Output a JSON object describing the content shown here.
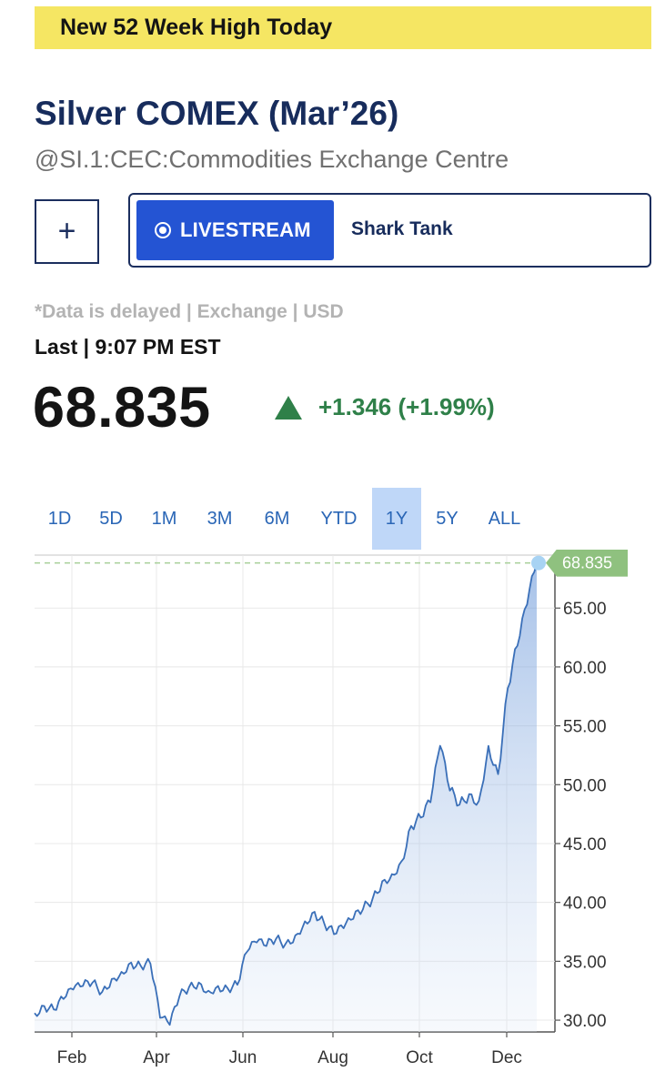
{
  "banner": {
    "text": "New 52 Week High Today"
  },
  "header": {
    "title": "Silver COMEX (Mar’26)",
    "symbol": "@SI.1:CEC:Commodities Exchange Centre"
  },
  "actions": {
    "plus_label": "+",
    "livestream_label": "LIVESTREAM",
    "show_name": "Shark Tank"
  },
  "quote": {
    "delay_note": "*Data is delayed | Exchange | USD",
    "last_label": "Last | 9:07 PM EST",
    "price": "68.835",
    "change": "+1.346 (+1.99%)"
  },
  "ranges": [
    {
      "label": "1D",
      "active": false
    },
    {
      "label": "5D",
      "active": false
    },
    {
      "label": "1M",
      "active": false
    },
    {
      "label": "3M",
      "active": false
    },
    {
      "label": "6M",
      "active": false
    },
    {
      "label": "YTD",
      "active": false
    },
    {
      "label": "1Y",
      "active": true
    },
    {
      "label": "5Y",
      "active": false
    },
    {
      "label": "ALL",
      "active": false
    }
  ],
  "colors": {
    "accent": "#2454d3",
    "up": "#2f8049",
    "line": "#3a6fb8",
    "banner": "#f5e663",
    "last_tag": "#8fc17f"
  },
  "icons": {
    "livestream": "radio-dot-icon",
    "change": "up-triangle-icon"
  },
  "chart_data": {
    "type": "area",
    "title": "",
    "xlabel": "",
    "ylabel": "",
    "ylim": [
      29,
      69.5
    ],
    "y_ticks": [
      "30.00",
      "35.00",
      "40.00",
      "45.00",
      "50.00",
      "55.00",
      "60.00",
      "65.00"
    ],
    "x_ticks": [
      "Feb",
      "Apr",
      "Jun",
      "Aug",
      "Oct",
      "Dec"
    ],
    "last_value": "68.835",
    "grid": true,
    "x": [
      "Jan 6",
      "Jan 13",
      "Jan 20",
      "Jan 27",
      "Feb 3",
      "Feb 10",
      "Feb 17",
      "Feb 24",
      "Mar 3",
      "Mar 10",
      "Mar 17",
      "Mar 24",
      "Mar 31",
      "Apr 4",
      "Apr 7",
      "Apr 14",
      "Apr 21",
      "Apr 28",
      "May 5",
      "May 12",
      "May 19",
      "May 26",
      "Jun 2",
      "Jun 9",
      "Jun 16",
      "Jun 23",
      "Jun 30",
      "Jul 7",
      "Jul 14",
      "Jul 21",
      "Jul 28",
      "Aug 4",
      "Aug 11",
      "Aug 18",
      "Aug 25",
      "Sep 1",
      "Sep 8",
      "Sep 15",
      "Sep 22",
      "Sep 29",
      "Oct 6",
      "Oct 13",
      "Oct 20",
      "Oct 27",
      "Nov 3",
      "Nov 10",
      "Nov 17",
      "Nov 24",
      "Dec 1",
      "Dec 8",
      "Dec 15",
      "Dec 22",
      "Dec 29"
    ],
    "values": [
      30.6,
      31.2,
      30.9,
      31.8,
      32.6,
      32.9,
      33.2,
      32.4,
      33.5,
      34.1,
      34.9,
      34.6,
      34.8,
      30.2,
      29.6,
      32.0,
      32.8,
      33.2,
      32.5,
      32.9,
      32.7,
      33.0,
      35.8,
      36.6,
      36.3,
      36.9,
      36.5,
      37.2,
      38.4,
      39.2,
      38.2,
      37.3,
      37.8,
      38.6,
      39.4,
      40.3,
      41.8,
      42.4,
      43.5,
      46.5,
      47.2,
      48.5,
      53.3,
      49.5,
      48.3,
      49.2,
      48.6,
      53.3,
      50.9,
      58.2,
      61.8,
      65.3,
      68.835
    ]
  }
}
